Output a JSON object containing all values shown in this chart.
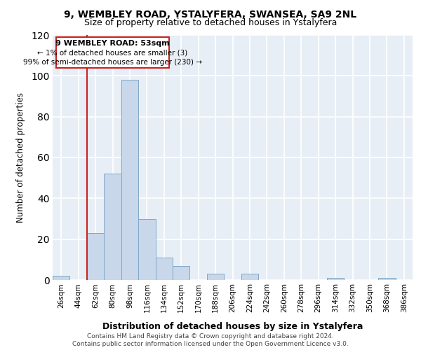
{
  "title_line1": "9, WEMBLEY ROAD, YSTALYFERA, SWANSEA, SA9 2NL",
  "title_line2": "Size of property relative to detached houses in Ystalyfera",
  "xlabel": "Distribution of detached houses by size in Ystalyfera",
  "ylabel": "Number of detached properties",
  "bar_color": "#c8d8ea",
  "bar_edge_color": "#7fa8c8",
  "categories": [
    "26sqm",
    "44sqm",
    "62sqm",
    "80sqm",
    "98sqm",
    "116sqm",
    "134sqm",
    "152sqm",
    "170sqm",
    "188sqm",
    "206sqm",
    "224sqm",
    "242sqm",
    "260sqm",
    "278sqm",
    "296sqm",
    "314sqm",
    "332sqm",
    "350sqm",
    "368sqm",
    "386sqm"
  ],
  "values": [
    2,
    0,
    23,
    52,
    98,
    30,
    11,
    7,
    0,
    3,
    0,
    3,
    0,
    0,
    0,
    0,
    1,
    0,
    0,
    1,
    0
  ],
  "ylim": [
    0,
    120
  ],
  "yticks": [
    0,
    20,
    40,
    60,
    80,
    100,
    120
  ],
  "annotation_title": "9 WEMBLEY ROAD: 53sqm",
  "annotation_line2": "← 1% of detached houses are smaller (3)",
  "annotation_line3": "99% of semi-detached houses are larger (230) →",
  "annotation_box_color": "#ffffff",
  "annotation_border_color": "#cc2222",
  "property_line_bar_idx": 2,
  "footer_line1": "Contains HM Land Registry data © Crown copyright and database right 2024.",
  "footer_line2": "Contains public sector information licensed under the Open Government Licence v3.0.",
  "background_color": "#e8eef5",
  "grid_color": "#ffffff",
  "fig_bg_color": "#ffffff"
}
